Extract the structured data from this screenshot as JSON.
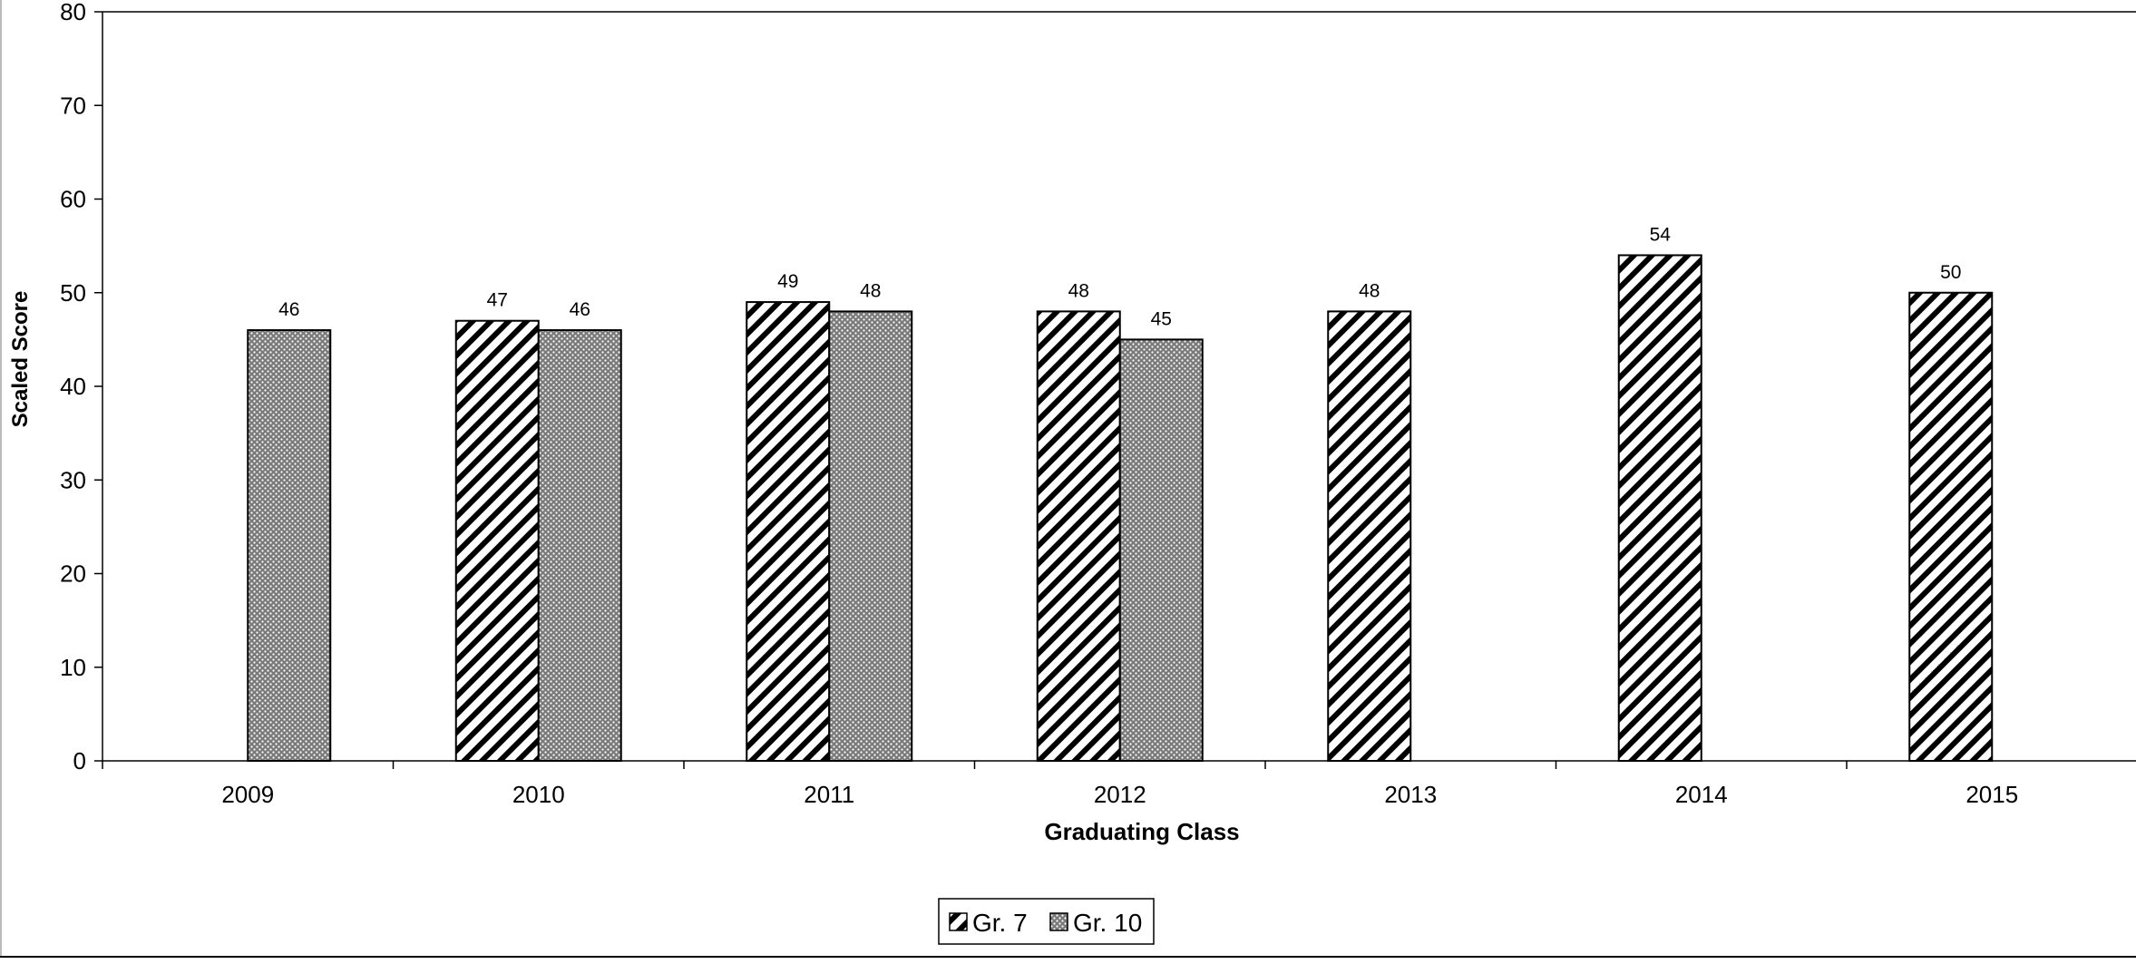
{
  "chart_data": {
    "type": "bar",
    "title": "",
    "xlabel": "Graduating Class",
    "ylabel": "Scaled Score",
    "categories": [
      "2009",
      "2010",
      "2011",
      "2012",
      "2013",
      "2014",
      "2015"
    ],
    "series": [
      {
        "name": "Gr. 7",
        "pattern": "diagonal-hatch",
        "values": [
          null,
          47,
          49,
          48,
          48,
          54,
          50
        ]
      },
      {
        "name": "Gr. 10",
        "pattern": "dotted-grey",
        "values": [
          46,
          46,
          48,
          45,
          null,
          null,
          null
        ]
      }
    ],
    "ylim": [
      0,
      80
    ],
    "yticks": [
      0,
      10,
      20,
      30,
      40,
      50,
      60,
      70,
      80
    ],
    "grid": false,
    "data_labels": true,
    "legend_position": "bottom-center",
    "colors": {
      "bar_stroke": "#000000",
      "dot_fill": "#8a8a8a",
      "background": "#ffffff"
    }
  }
}
